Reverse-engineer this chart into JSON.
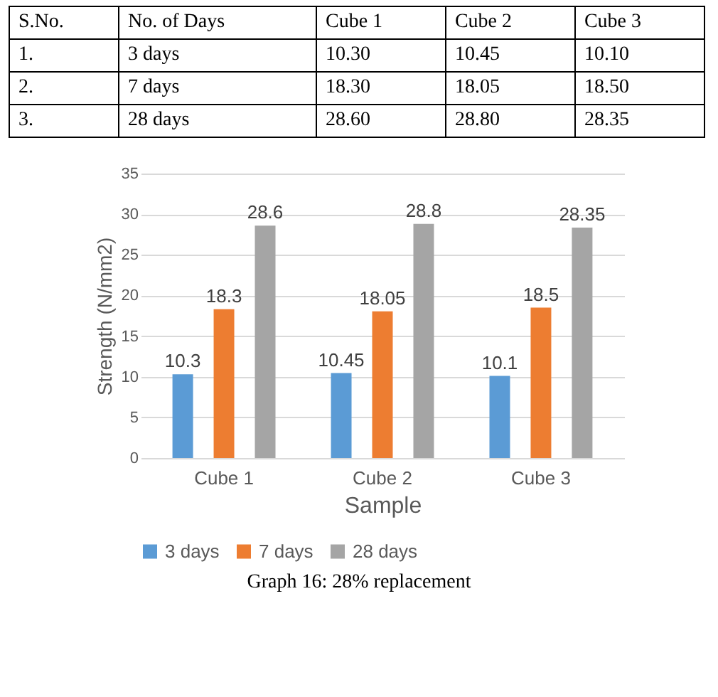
{
  "chart_data": [
    {
      "type": "other",
      "categories": [
        "S.No.",
        "No. of Days",
        "Cube 1",
        "Cube 2",
        "Cube 3"
      ],
      "annotations": [
        "1.",
        "3 days",
        "10.30",
        "10.45",
        "10.10",
        "2.",
        "7 days",
        "18.30",
        "18.05",
        "18.50",
        "3.",
        "28 days",
        "28.60",
        "28.80",
        "28.35"
      ]
    },
    {
      "type": "bar",
      "categories": [
        "Cube 1",
        "Cube 2",
        "Cube 3"
      ],
      "series": [
        {
          "name": "3 days",
          "color": "#5b9bd5",
          "values": [
            10.3,
            10.45,
            10.1
          ]
        },
        {
          "name": "7 days",
          "color": "#ed7d31",
          "values": [
            18.3,
            18.05,
            18.5
          ]
        },
        {
          "name": "28 days",
          "color": "#a5a5a5",
          "values": [
            28.6,
            28.8,
            28.35
          ]
        }
      ],
      "xlabel": "Sample",
      "ylabel": "Strength (N/mm2)",
      "ylim": [
        0,
        35
      ],
      "yticks": [
        0,
        5,
        10,
        15,
        20,
        25,
        30,
        35
      ],
      "grid": "y",
      "legend": "bottom",
      "data_labels": true,
      "annotations": [
        "Graph 16: 28% replacement"
      ]
    }
  ]
}
